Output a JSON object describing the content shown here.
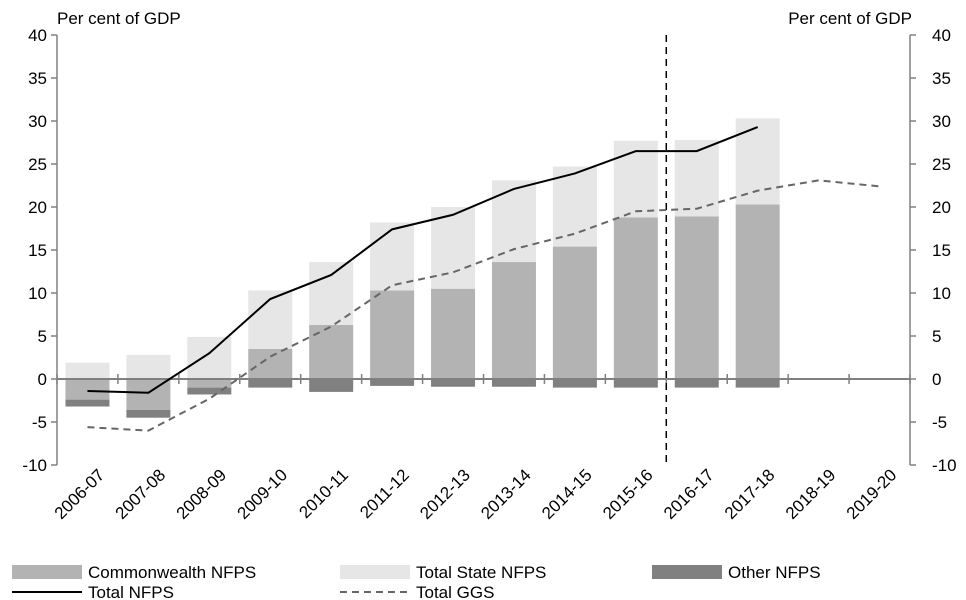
{
  "chart_data": {
    "type": "bar",
    "left_axis_title": "Per cent of GDP",
    "right_axis_title": "Per cent of GDP",
    "categories": [
      "2006-07",
      "2007-08",
      "2008-09",
      "2009-10",
      "2010-11",
      "2011-12",
      "2012-13",
      "2013-14",
      "2014-15",
      "2015-16",
      "2016-17",
      "2017-18",
      "2018-19",
      "2019-20"
    ],
    "ylim": [
      -10,
      40
    ],
    "yticks": [
      -10,
      -5,
      0,
      5,
      10,
      15,
      20,
      25,
      30,
      35,
      40
    ],
    "ytick_labels": [
      "-10",
      "-5",
      "0",
      "5",
      "10",
      "15",
      "20",
      "25",
      "30",
      "35",
      "40"
    ],
    "stacking": "stacked",
    "grid": false,
    "legend_position": "bottom",
    "forecast_divider_after_category": "2015-16",
    "series": [
      {
        "name": "Commonwealth NFPS",
        "kind": "bar",
        "color": "#b3b3b3",
        "values": [
          -2.4,
          -3.6,
          -1.0,
          3.5,
          6.3,
          10.3,
          10.5,
          13.6,
          15.4,
          18.8,
          18.9,
          20.3,
          null,
          null
        ]
      },
      {
        "name": "Total State NFPS",
        "kind": "bar",
        "color": "#e6e6e6",
        "values": [
          1.9,
          2.8,
          4.9,
          6.8,
          7.3,
          7.9,
          9.5,
          9.5,
          9.3,
          8.9,
          8.9,
          10.0,
          null,
          null
        ]
      },
      {
        "name": "Other NFPS",
        "kind": "bar",
        "color": "#808080",
        "values": [
          -0.8,
          -0.9,
          -0.8,
          -1.0,
          -1.5,
          -0.8,
          -0.9,
          -0.9,
          -1.0,
          -1.0,
          -1.0,
          -1.0,
          null,
          null
        ]
      },
      {
        "name": "Total NFPS",
        "kind": "line",
        "color": "#000000",
        "dash": "solid",
        "values": [
          -1.4,
          -1.6,
          3.0,
          9.3,
          12.1,
          17.4,
          19.1,
          22.1,
          23.9,
          26.5,
          26.5,
          29.3,
          null,
          null
        ]
      },
      {
        "name": "Total GGS",
        "kind": "line",
        "color": "#666666",
        "dash": "dashed",
        "values": [
          -5.6,
          -6.0,
          -2.3,
          2.6,
          6.1,
          10.9,
          12.4,
          15.1,
          16.9,
          19.5,
          19.8,
          21.9,
          23.1,
          22.4
        ]
      }
    ]
  }
}
